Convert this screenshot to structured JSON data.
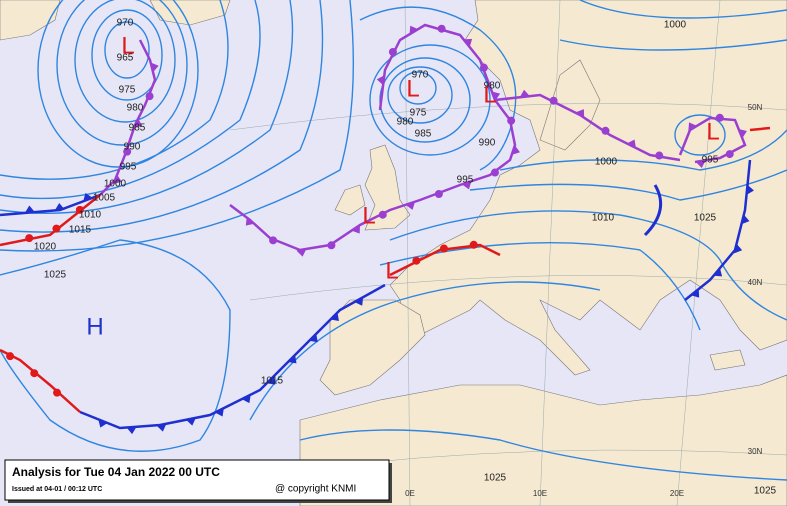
{
  "caption": {
    "title": "Analysis for Tue 04 Jan 2022 00 UTC",
    "issued": "Issued at 04-01 / 00:12 UTC",
    "copyright": "@ copyright KNMI"
  },
  "pressure_labels": [
    970,
    965,
    975,
    980,
    985,
    990,
    995,
    1000,
    1005,
    1010,
    1015,
    1020,
    1025,
    970,
    975,
    980,
    985,
    980,
    990,
    995,
    1000,
    995,
    1010,
    1025,
    1015,
    1025,
    1025,
    1000
  ],
  "centers": [
    "L",
    "L",
    "L",
    "L",
    "L",
    "L",
    "H"
  ],
  "grid_labels": [
    "50N",
    "40N",
    "30N",
    "0E",
    "10E",
    "20E"
  ]
}
